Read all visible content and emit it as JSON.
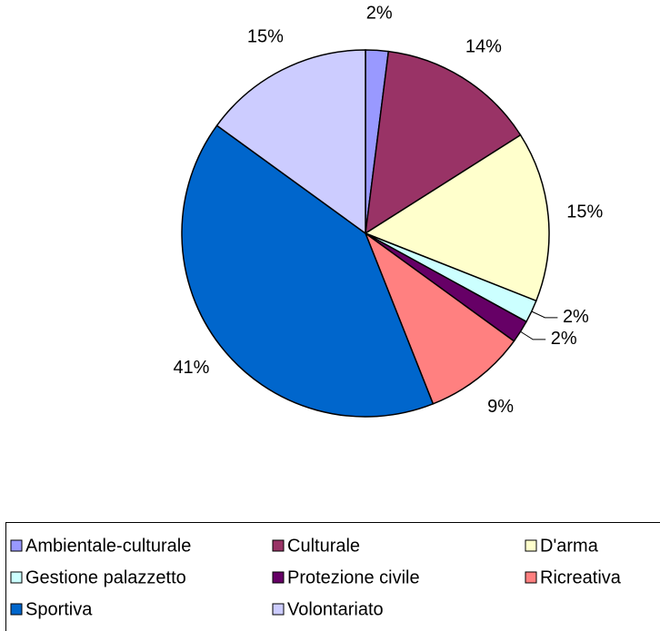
{
  "chart_data": {
    "type": "pie",
    "categories": [
      "Ambientale-culturale",
      "Culturale",
      "D'arma",
      "Gestione palazzetto",
      "Protezione civile",
      "Ricreativa",
      "Sportiva",
      "Volontariato"
    ],
    "values": [
      2,
      14,
      15,
      2,
      2,
      9,
      41,
      15
    ],
    "value_labels": [
      "2%",
      "14%",
      "15%",
      "2%",
      "2%",
      "9%",
      "41%",
      "15%"
    ],
    "colors": [
      "#9999ff",
      "#993366",
      "#ffffcc",
      "#ccffff",
      "#660066",
      "#ff8080",
      "#0066cc",
      "#ccccff"
    ],
    "legend": "bottom"
  }
}
